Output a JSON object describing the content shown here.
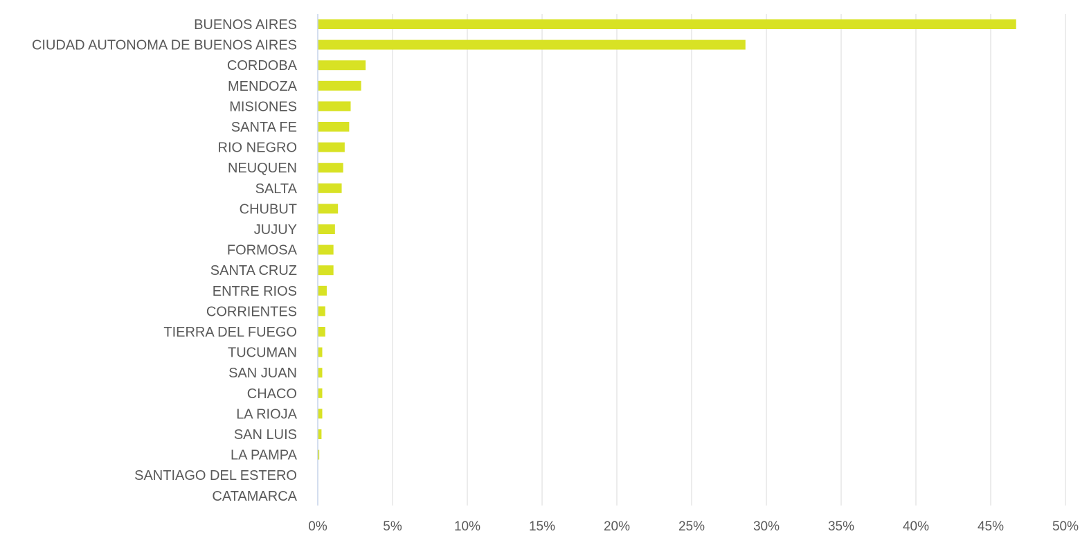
{
  "colors": {
    "bar": "#d8e224",
    "grid": "#d9d9d9",
    "axis": "#c6d4ea",
    "text": "#595959",
    "background": "#ffffff"
  },
  "chart_data": {
    "type": "bar",
    "orientation": "horizontal",
    "title": "",
    "xlabel": "",
    "ylabel": "",
    "grid": true,
    "legend": "none",
    "xlim": [
      0,
      50
    ],
    "x_ticks": [
      0,
      5,
      10,
      15,
      20,
      25,
      30,
      35,
      40,
      45,
      50
    ],
    "x_tick_labels": [
      "0%",
      "5%",
      "10%",
      "15%",
      "20%",
      "25%",
      "30%",
      "35%",
      "40%",
      "45%",
      "50%"
    ],
    "value_unit": "%",
    "categories": [
      "BUENOS AIRES",
      "CIUDAD AUTONOMA DE BUENOS AIRES",
      "CORDOBA",
      "MENDOZA",
      "MISIONES",
      "SANTA FE",
      "RIO NEGRO",
      "NEUQUEN",
      "SALTA",
      "CHUBUT",
      "JUJUY",
      "FORMOSA",
      "SANTA CRUZ",
      "ENTRE RIOS",
      "CORRIENTES",
      "TIERRA DEL FUEGO",
      "TUCUMAN",
      "SAN JUAN",
      "CHACO",
      "LA RIOJA",
      "SAN LUIS",
      "LA PAMPA",
      "SANTIAGO DEL ESTERO",
      "CATAMARCA"
    ],
    "values": [
      46.7,
      28.6,
      3.2,
      2.9,
      2.2,
      2.1,
      1.8,
      1.7,
      1.6,
      1.35,
      1.15,
      1.05,
      1.05,
      0.6,
      0.5,
      0.5,
      0.3,
      0.3,
      0.3,
      0.3,
      0.25,
      0.1,
      0.0,
      0.0
    ]
  }
}
